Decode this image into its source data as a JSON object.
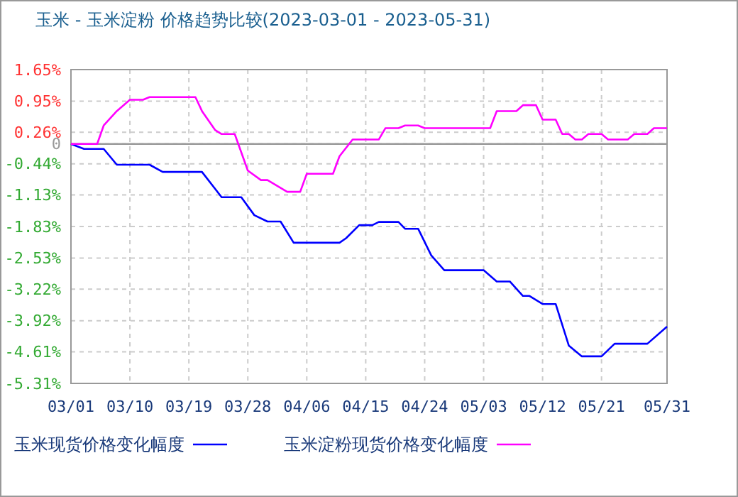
{
  "chart_data": {
    "type": "line",
    "title": "玉米 - 玉米淀粉 价格趋势比较(2023-03-01 - 2023-05-31)",
    "xlim": [
      "2023-03-01",
      "2023-05-31"
    ],
    "xticks": [
      {
        "value": "2023-03-01",
        "label": "03/01"
      },
      {
        "value": "2023-03-10",
        "label": "03/10"
      },
      {
        "value": "2023-03-19",
        "label": "03/19"
      },
      {
        "value": "2023-03-28",
        "label": "03/28"
      },
      {
        "value": "2023-04-06",
        "label": "04/06"
      },
      {
        "value": "2023-04-15",
        "label": "04/15"
      },
      {
        "value": "2023-04-24",
        "label": "04/24"
      },
      {
        "value": "2023-05-03",
        "label": "05/03"
      },
      {
        "value": "2023-05-12",
        "label": "05/12"
      },
      {
        "value": "2023-05-21",
        "label": "05/21"
      },
      {
        "value": "2023-05-31",
        "label": "05/31"
      }
    ],
    "ylim": [
      -5.31,
      1.65
    ],
    "yticks": [
      {
        "value": 1.65,
        "label": "1.65%"
      },
      {
        "value": 0.95,
        "label": "0.95%"
      },
      {
        "value": 0.26,
        "label": "0.26%"
      },
      0,
      {
        "value": -0.44,
        "label": "-0.44%"
      },
      {
        "value": -1.13,
        "label": "-1.13%"
      },
      {
        "value": -1.83,
        "label": "-1.83%"
      },
      {
        "value": -2.53,
        "label": "-2.53%"
      },
      {
        "value": -3.22,
        "label": "-3.22%"
      },
      {
        "value": -3.92,
        "label": "-3.92%"
      },
      {
        "value": -4.61,
        "label": "-4.61%"
      },
      {
        "value": -5.31,
        "label": "-5.31%"
      }
    ],
    "grid": true,
    "legend": "bottom",
    "line_style": "solid",
    "marker": "none",
    "ref_lines": [
      {
        "axis": "y",
        "value": 0,
        "color": "#999999",
        "line_style": "solid"
      }
    ],
    "series": [
      {
        "name": "玉米现货价格变化幅度",
        "color": "#0000ff",
        "x": [
          "2023-03-01",
          "2023-03-03",
          "2023-03-06",
          "2023-03-08",
          "2023-03-13",
          "2023-03-15",
          "2023-03-21",
          "2023-03-24",
          "2023-03-27",
          "2023-03-29",
          "2023-03-31",
          "2023-04-02",
          "2023-04-04",
          "2023-04-11",
          "2023-04-12",
          "2023-04-14",
          "2023-04-16",
          "2023-04-17",
          "2023-04-20",
          "2023-04-21",
          "2023-04-23",
          "2023-04-25",
          "2023-04-27",
          "2023-05-03",
          "2023-05-05",
          "2023-05-07",
          "2023-05-09",
          "2023-05-10",
          "2023-05-12",
          "2023-05-14",
          "2023-05-16",
          "2023-05-18",
          "2023-05-21",
          "2023-05-23",
          "2023-05-28",
          "2023-05-31"
        ],
        "values": [
          0,
          -0.11,
          -0.11,
          -0.46,
          -0.46,
          -0.62,
          -0.62,
          -1.18,
          -1.18,
          -1.58,
          -1.72,
          -1.72,
          -2.19,
          -2.19,
          -2.09,
          -1.8,
          -1.8,
          -1.73,
          -1.73,
          -1.88,
          -1.88,
          -2.47,
          -2.8,
          -2.8,
          -3.05,
          -3.05,
          -3.37,
          -3.37,
          -3.55,
          -3.55,
          -4.47,
          -4.71,
          -4.71,
          -4.43,
          -4.43,
          -4.05
        ]
      },
      {
        "name": "玉米淀粉现货价格变化幅度",
        "color": "#ff00ff",
        "x": [
          "2023-03-01",
          "2023-03-05",
          "2023-03-06",
          "2023-03-08",
          "2023-03-10",
          "2023-03-12",
          "2023-03-13",
          "2023-03-20",
          "2023-03-21",
          "2023-03-23",
          "2023-03-24",
          "2023-03-26",
          "2023-03-28",
          "2023-03-30",
          "2023-03-31",
          "2023-04-03",
          "2023-04-05",
          "2023-04-06",
          "2023-04-10",
          "2023-04-11",
          "2023-04-13",
          "2023-04-17",
          "2023-04-18",
          "2023-04-20",
          "2023-04-21",
          "2023-04-23",
          "2023-04-24",
          "2023-05-04",
          "2023-05-05",
          "2023-05-08",
          "2023-05-09",
          "2023-05-11",
          "2023-05-12",
          "2023-05-14",
          "2023-05-15",
          "2023-05-16",
          "2023-05-17",
          "2023-05-18",
          "2023-05-19",
          "2023-05-21",
          "2023-05-22",
          "2023-05-25",
          "2023-05-26",
          "2023-05-28",
          "2023-05-29",
          "2023-05-31"
        ],
        "values": [
          0,
          0,
          0.41,
          0.73,
          0.98,
          0.98,
          1.04,
          1.04,
          0.73,
          0.31,
          0.22,
          0.22,
          -0.59,
          -0.8,
          -0.8,
          -1.06,
          -1.06,
          -0.66,
          -0.66,
          -0.27,
          0.1,
          0.1,
          0.35,
          0.35,
          0.41,
          0.41,
          0.35,
          0.35,
          0.73,
          0.73,
          0.86,
          0.86,
          0.54,
          0.54,
          0.22,
          0.22,
          0.1,
          0.1,
          0.22,
          0.22,
          0.1,
          0.1,
          0.22,
          0.22,
          0.35,
          0.35
        ]
      }
    ]
  }
}
